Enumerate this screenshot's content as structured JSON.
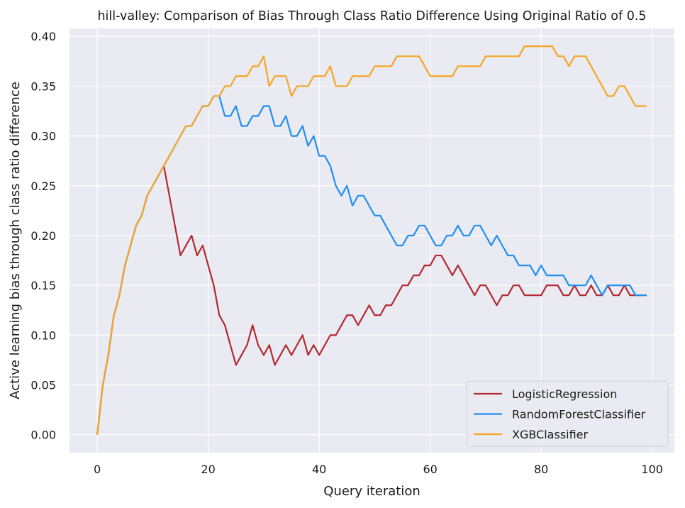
{
  "chart_data": {
    "type": "line",
    "title": "hill-valley: Comparison of Bias Through Class Ratio Difference Using Original Ratio of 0.5",
    "xlabel": "Query iteration",
    "ylabel": "Active learning bias through class ratio difference",
    "xlim": [
      -5,
      104
    ],
    "ylim": [
      -0.018,
      0.408
    ],
    "xticks": [
      0,
      20,
      40,
      60,
      80,
      100
    ],
    "yticks": [
      0.0,
      0.05,
      0.1,
      0.15,
      0.2,
      0.25,
      0.3,
      0.35,
      0.4
    ],
    "xtick_labels": [
      "0",
      "20",
      "40",
      "60",
      "80",
      "100"
    ],
    "ytick_labels": [
      "0.00",
      "0.05",
      "0.10",
      "0.15",
      "0.20",
      "0.25",
      "0.30",
      "0.35",
      "0.40"
    ],
    "grid": true,
    "legend_position": "lower-right",
    "background_color": "#eaeaf2",
    "x": [
      0,
      1,
      2,
      3,
      4,
      5,
      6,
      7,
      8,
      9,
      10,
      11,
      12,
      13,
      14,
      15,
      16,
      17,
      18,
      19,
      20,
      21,
      22,
      23,
      24,
      25,
      26,
      27,
      28,
      29,
      30,
      31,
      32,
      33,
      34,
      35,
      36,
      37,
      38,
      39,
      40,
      41,
      42,
      43,
      44,
      45,
      46,
      47,
      48,
      49,
      50,
      51,
      52,
      53,
      54,
      55,
      56,
      57,
      58,
      59,
      60,
      61,
      62,
      63,
      64,
      65,
      66,
      67,
      68,
      69,
      70,
      71,
      72,
      73,
      74,
      75,
      76,
      77,
      78,
      79,
      80,
      81,
      82,
      83,
      84,
      85,
      86,
      87,
      88,
      89,
      90,
      91,
      92,
      93,
      94,
      95,
      96,
      97,
      98,
      99
    ],
    "series": [
      {
        "name": "LogisticRegression",
        "color": "#b2292e",
        "values": [
          0.0,
          0.05,
          0.08,
          0.12,
          0.14,
          0.17,
          0.19,
          0.21,
          0.22,
          0.24,
          0.25,
          0.26,
          0.27,
          0.24,
          0.21,
          0.18,
          0.19,
          0.2,
          0.18,
          0.19,
          0.17,
          0.15,
          0.12,
          0.11,
          0.09,
          0.07,
          0.08,
          0.09,
          0.11,
          0.09,
          0.08,
          0.09,
          0.07,
          0.08,
          0.09,
          0.08,
          0.09,
          0.1,
          0.08,
          0.09,
          0.08,
          0.09,
          0.1,
          0.1,
          0.11,
          0.12,
          0.12,
          0.11,
          0.12,
          0.13,
          0.12,
          0.12,
          0.13,
          0.13,
          0.14,
          0.15,
          0.15,
          0.16,
          0.16,
          0.17,
          0.17,
          0.18,
          0.18,
          0.17,
          0.16,
          0.17,
          0.16,
          0.15,
          0.14,
          0.15,
          0.15,
          0.14,
          0.13,
          0.14,
          0.14,
          0.15,
          0.15,
          0.14,
          0.14,
          0.14,
          0.14,
          0.15,
          0.15,
          0.15,
          0.14,
          0.14,
          0.15,
          0.14,
          0.14,
          0.15,
          0.14,
          0.14,
          0.15,
          0.14,
          0.14,
          0.15,
          0.14,
          0.14,
          0.14,
          0.14
        ]
      },
      {
        "name": "RandomForestClassifier",
        "color": "#1f8ef1",
        "values": [
          0.0,
          0.05,
          0.08,
          0.12,
          0.14,
          0.17,
          0.19,
          0.21,
          0.22,
          0.24,
          0.25,
          0.26,
          0.27,
          0.28,
          0.29,
          0.3,
          0.31,
          0.31,
          0.32,
          0.33,
          0.33,
          0.34,
          0.34,
          0.32,
          0.32,
          0.33,
          0.31,
          0.31,
          0.32,
          0.32,
          0.33,
          0.33,
          0.31,
          0.31,
          0.32,
          0.3,
          0.3,
          0.31,
          0.29,
          0.3,
          0.28,
          0.28,
          0.27,
          0.25,
          0.24,
          0.25,
          0.23,
          0.24,
          0.24,
          0.23,
          0.22,
          0.22,
          0.21,
          0.2,
          0.19,
          0.19,
          0.2,
          0.2,
          0.21,
          0.21,
          0.2,
          0.19,
          0.19,
          0.2,
          0.2,
          0.21,
          0.2,
          0.2,
          0.21,
          0.21,
          0.2,
          0.19,
          0.2,
          0.19,
          0.18,
          0.18,
          0.17,
          0.17,
          0.17,
          0.16,
          0.17,
          0.16,
          0.16,
          0.16,
          0.16,
          0.15,
          0.15,
          0.15,
          0.15,
          0.16,
          0.15,
          0.14,
          0.15,
          0.15,
          0.15,
          0.15,
          0.15,
          0.14,
          0.14,
          0.14
        ]
      },
      {
        "name": "XGBClassifier",
        "color": "#f5a623",
        "values": [
          0.0,
          0.05,
          0.08,
          0.12,
          0.14,
          0.17,
          0.19,
          0.21,
          0.22,
          0.24,
          0.25,
          0.26,
          0.27,
          0.28,
          0.29,
          0.3,
          0.31,
          0.31,
          0.32,
          0.33,
          0.33,
          0.34,
          0.34,
          0.35,
          0.35,
          0.36,
          0.36,
          0.36,
          0.37,
          0.37,
          0.38,
          0.35,
          0.36,
          0.36,
          0.36,
          0.34,
          0.35,
          0.35,
          0.35,
          0.36,
          0.36,
          0.36,
          0.37,
          0.35,
          0.35,
          0.35,
          0.36,
          0.36,
          0.36,
          0.36,
          0.37,
          0.37,
          0.37,
          0.37,
          0.38,
          0.38,
          0.38,
          0.38,
          0.38,
          0.37,
          0.36,
          0.36,
          0.36,
          0.36,
          0.36,
          0.37,
          0.37,
          0.37,
          0.37,
          0.37,
          0.38,
          0.38,
          0.38,
          0.38,
          0.38,
          0.38,
          0.38,
          0.39,
          0.39,
          0.39,
          0.39,
          0.39,
          0.39,
          0.38,
          0.38,
          0.37,
          0.38,
          0.38,
          0.38,
          0.37,
          0.36,
          0.35,
          0.34,
          0.34,
          0.35,
          0.35,
          0.34,
          0.33,
          0.33,
          0.33
        ]
      }
    ]
  }
}
